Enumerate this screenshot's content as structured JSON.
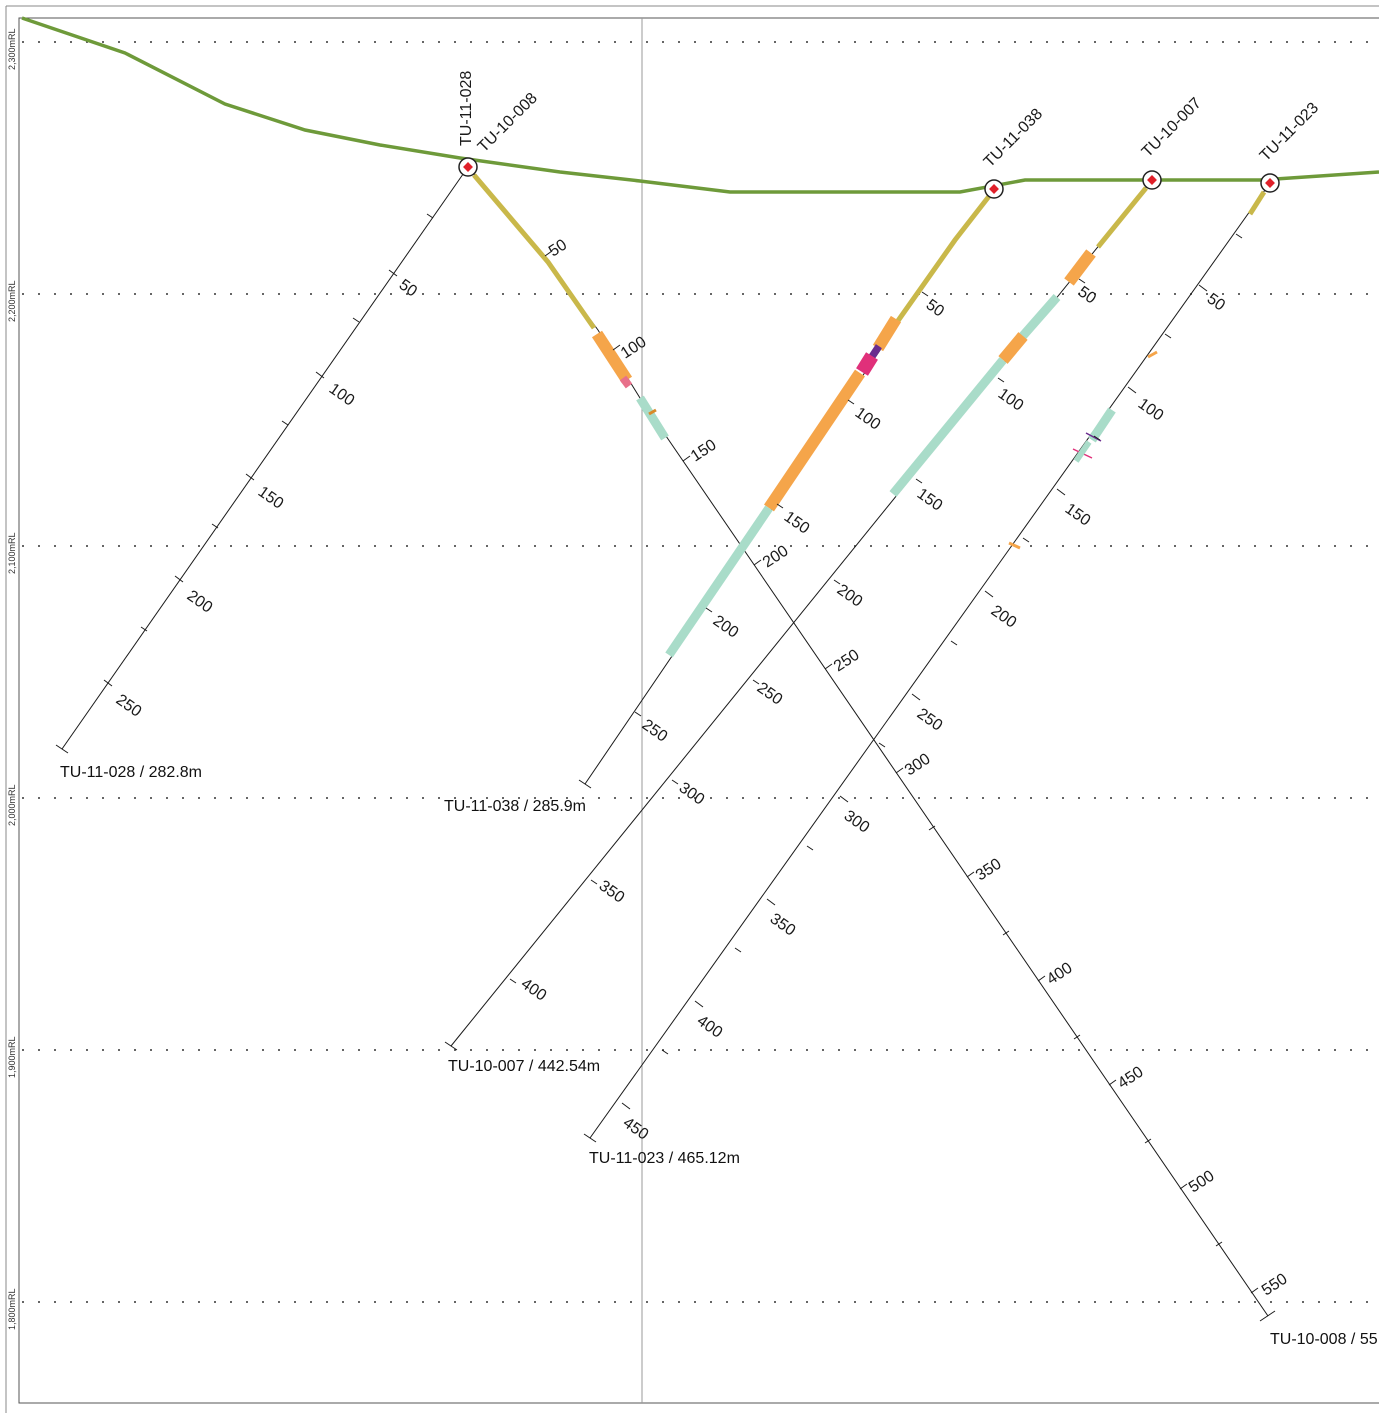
{
  "section": {
    "rl_labels": [
      "2,300mRL",
      "2,200mRL",
      "2,100mRL",
      "2,000mRL",
      "1,900mRL",
      "1,800mRL"
    ],
    "colors": {
      "topography": "#6e9a3a",
      "trace": "#1a1a1a",
      "orange_interval": "#f5a54a",
      "green_interval": "#a9dcc9",
      "yellow_interval": "#c9b84a",
      "magenta_interval": "#e0307a",
      "purple_interval": "#6a2c8e",
      "collar_marker": "#e0202a"
    }
  },
  "holes": [
    {
      "id": "TU-11-028",
      "collar_labels": [
        "TU-11-028",
        "TU-10-008"
      ],
      "end_label": "TU-11-028 / 282.8m",
      "depth_labels": [
        "50",
        "100",
        "150",
        "200",
        "250"
      ]
    },
    {
      "id": "TU-10-008",
      "end_label": "TU-10-008 / 55",
      "depth_labels": [
        "50",
        "100",
        "150",
        "200",
        "250",
        "300",
        "350",
        "400",
        "450",
        "500",
        "550"
      ]
    },
    {
      "id": "TU-11-038",
      "collar_label": "TU-11-038",
      "end_label": "TU-11-038 / 285.9m",
      "depth_labels": [
        "50",
        "100",
        "150",
        "200",
        "250"
      ]
    },
    {
      "id": "TU-10-007",
      "collar_label": "TU-10-007",
      "end_label": "TU-10-007 / 442.54m",
      "depth_labels": [
        "50",
        "100",
        "150",
        "200",
        "250",
        "300",
        "350",
        "400"
      ]
    },
    {
      "id": "TU-11-023",
      "collar_label": "TU-11-023",
      "end_label": "TU-11-023 / 465.12m",
      "depth_labels": [
        "50",
        "100",
        "150",
        "200",
        "250",
        "300",
        "350",
        "400",
        "450"
      ]
    }
  ]
}
